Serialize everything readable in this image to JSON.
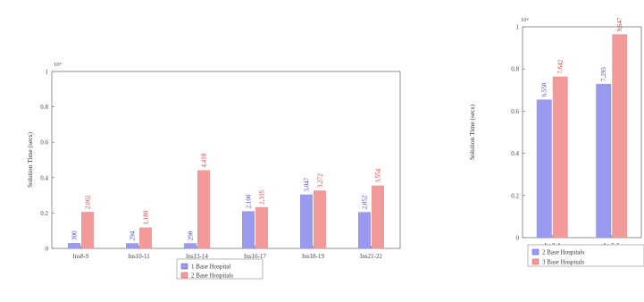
{
  "colors": {
    "series1": "#9999ee",
    "series2": "#f29a9a",
    "label1": "#4444cc",
    "label2": "#dd3333",
    "frame": "#777777"
  },
  "chart_data": [
    {
      "type": "bar",
      "categories": [
        "Ins8-9",
        "Ins10-11",
        "Ins13-14",
        "Ins16-17",
        "Ins18-19",
        "Ins21-22"
      ],
      "ylabel": "Solution Time (secs)",
      "xlabel": "",
      "title": "",
      "multiplier": "10⁴",
      "ylim": [
        0,
        1
      ],
      "yticks": [
        "0",
        "0.2",
        "0.4",
        "0.6",
        "0.8",
        "1"
      ],
      "series": [
        {
          "name": "1 Base Hospital",
          "values": [
            0.03,
            0.029,
            0.029,
            0.21,
            0.3047,
            0.2052
          ],
          "labels": [
            "300",
            "294",
            "290",
            "2,100",
            "3,047",
            "2,052"
          ]
        },
        {
          "name": "2 Base Hospitals",
          "values": [
            0.2062,
            0.118,
            0.4418,
            0.2335,
            0.3272,
            0.3554
          ],
          "labels": [
            "2,062",
            "1,180",
            "4,418",
            "2,335",
            "3,272",
            "3,554"
          ]
        }
      ],
      "legend": "bottom-center"
    },
    {
      "type": "bar",
      "categories": [
        "Ins3-4",
        "Ins5-6"
      ],
      "ylabel": "Solution Time (secs)",
      "xlabel": "",
      "title": "",
      "multiplier": "10⁴",
      "ylim": [
        0,
        1
      ],
      "yticks": [
        "0",
        "0.2",
        "0.4",
        "0.6",
        "0.8",
        "1"
      ],
      "series": [
        {
          "name": "2 Base Hospitals",
          "values": [
            0.655,
            0.7293
          ],
          "labels": [
            "6,550",
            "7,293"
          ]
        },
        {
          "name": "3 Base Hospitals",
          "values": [
            0.7642,
            0.9647
          ],
          "labels": [
            "7,642",
            "9,647"
          ]
        }
      ],
      "legend": "bottom-center"
    }
  ]
}
